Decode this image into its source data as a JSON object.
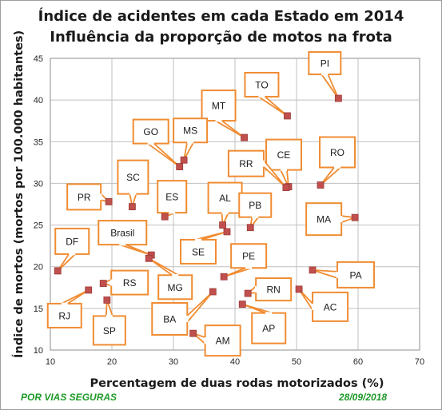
{
  "title_line1": "Índice de acidentes em cada Estado em 2014",
  "title_line2": "Influência da proporção de motos na frota",
  "footer_left": "POR VIAS SEGURAS",
  "footer_right": "28/09/2018",
  "colors": {
    "marker": "#c0504d",
    "callout_border": "#f08c32",
    "grid": "#bfbfbf",
    "footer": "#1f9a2a"
  },
  "chart_data": {
    "type": "scatter",
    "title": "Índice de acidentes em cada Estado em 2014 / Influência da proporção de motos na frota",
    "xlabel": "Percentagem de duas rodas motorizados (%)",
    "ylabel": "Índice de mortos (mortos por 100.000 habitantes)",
    "xlim": [
      10,
      70
    ],
    "ylim": [
      10,
      45
    ],
    "xticks": [
      10,
      20,
      30,
      40,
      50,
      60,
      70
    ],
    "yticks": [
      10,
      15,
      20,
      25,
      30,
      35,
      40,
      45
    ],
    "grid": true,
    "legend": "none",
    "points": [
      {
        "label": "PI",
        "x": 56.8,
        "y": 40.2
      },
      {
        "label": "TO",
        "x": 48.5,
        "y": 38.1
      },
      {
        "label": "MT",
        "x": 41.5,
        "y": 35.5
      },
      {
        "label": "MS",
        "x": 31.7,
        "y": 32.8
      },
      {
        "label": "GO",
        "x": 31.0,
        "y": 32.0
      },
      {
        "label": "CE",
        "x": 48.7,
        "y": 29.6
      },
      {
        "label": "RR",
        "x": 48.3,
        "y": 29.5
      },
      {
        "label": "RO",
        "x": 53.9,
        "y": 29.8
      },
      {
        "label": "PR",
        "x": 19.5,
        "y": 27.8
      },
      {
        "label": "SC",
        "x": 23.3,
        "y": 27.2
      },
      {
        "label": "ES",
        "x": 28.6,
        "y": 26.0
      },
      {
        "label": "AL",
        "x": 38.0,
        "y": 25.0
      },
      {
        "label": "SE",
        "x": 38.7,
        "y": 24.2
      },
      {
        "label": "PB",
        "x": 42.5,
        "y": 24.7
      },
      {
        "label": "MA",
        "x": 59.5,
        "y": 25.9
      },
      {
        "label": "Brasil",
        "x": 26.4,
        "y": 21.4
      },
      {
        "label": "MG",
        "x": 26.0,
        "y": 21.0
      },
      {
        "label": "PE",
        "x": 38.2,
        "y": 18.8
      },
      {
        "label": "DF",
        "x": 11.2,
        "y": 19.5
      },
      {
        "label": "PA",
        "x": 52.6,
        "y": 19.6
      },
      {
        "label": "RS",
        "x": 18.6,
        "y": 18.0
      },
      {
        "label": "RJ",
        "x": 16.2,
        "y": 17.2
      },
      {
        "label": "SP",
        "x": 19.2,
        "y": 16.0
      },
      {
        "label": "AC",
        "x": 50.4,
        "y": 17.3
      },
      {
        "label": "BA",
        "x": 36.4,
        "y": 17.0
      },
      {
        "label": "RN",
        "x": 42.1,
        "y": 16.8
      },
      {
        "label": "AP",
        "x": 41.2,
        "y": 15.5
      },
      {
        "label": "AM",
        "x": 33.2,
        "y": 12.0
      }
    ]
  }
}
